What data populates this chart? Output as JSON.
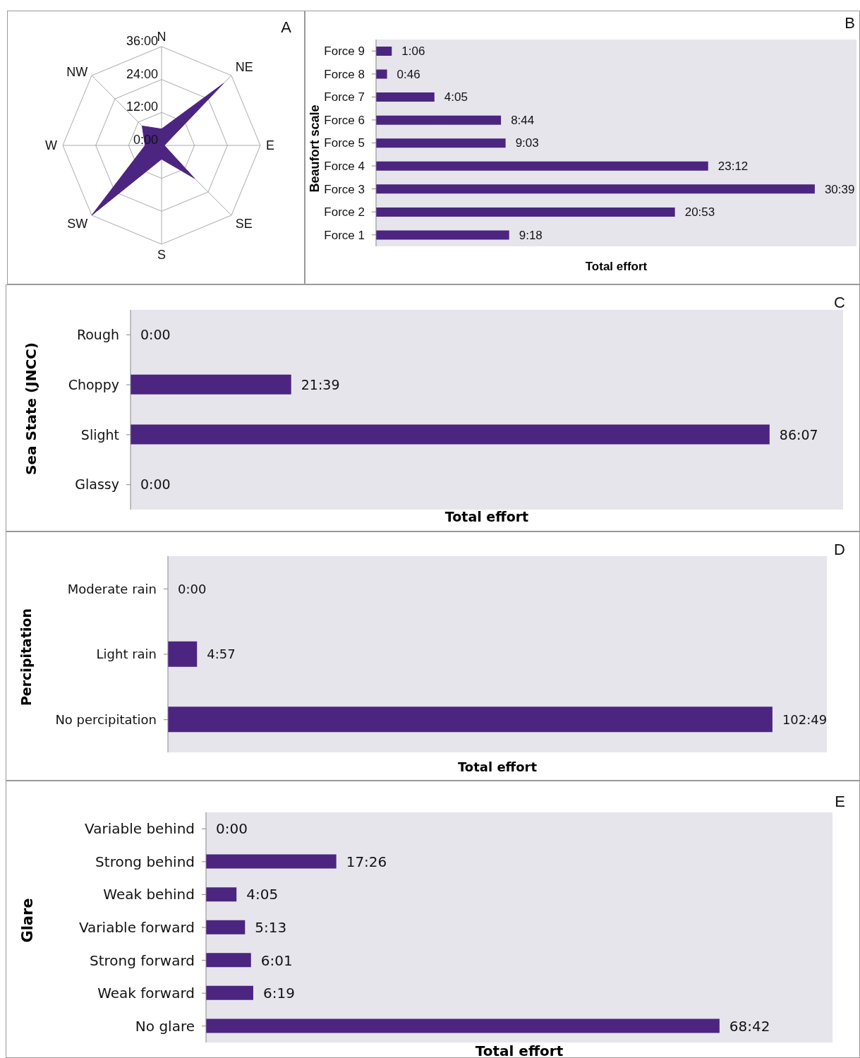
{
  "chart_data": [
    {
      "type": "radar",
      "annotations": [
        "A"
      ],
      "categories": [
        "N",
        "NE",
        "E",
        "SE",
        "S",
        "SW",
        "W",
        "NW"
      ],
      "series": [
        {
          "color": "#4b2580",
          "values": [
            6,
            32,
            1,
            17,
            5,
            36,
            6,
            10
          ]
        }
      ],
      "ylim": [
        0,
        36
      ],
      "yticks": [
        {
          "value": 0,
          "label": "0:00"
        },
        {
          "value": 12,
          "label": "12:00"
        },
        {
          "value": 24,
          "label": "24:00"
        },
        {
          "value": 36,
          "label": "36:00"
        }
      ]
    },
    {
      "type": "bar",
      "orientation": "horizontal",
      "annotations": [
        "B"
      ],
      "ylabel": "Beaufort scale",
      "xlabel": "Total effort",
      "color": "#4b2580",
      "categories": [
        "Force 9",
        "Force 8",
        "Force 7",
        "Force 6",
        "Force 5",
        "Force 4",
        "Force 3",
        "Force 2",
        "Force 1"
      ],
      "values": [
        1.1,
        0.77,
        4.08,
        8.73,
        9.05,
        23.2,
        30.65,
        20.88,
        9.3
      ],
      "value_labels": [
        "1:06",
        "0:46",
        "4:05",
        "8:44",
        "9:03",
        "23:12",
        "30:39",
        "20:53",
        "9:18"
      ]
    },
    {
      "type": "bar",
      "orientation": "horizontal",
      "annotations": [
        "C"
      ],
      "ylabel": "Sea State (JNCC)",
      "xlabel": "Total effort",
      "color": "#4b2580",
      "categories": [
        "Rough",
        "Choppy",
        "Slight",
        "Glassy"
      ],
      "values": [
        0,
        21.65,
        86.12,
        0
      ],
      "value_labels": [
        "0:00",
        "21:39",
        "86:07",
        "0:00"
      ]
    },
    {
      "type": "bar",
      "orientation": "horizontal",
      "annotations": [
        "D"
      ],
      "ylabel": "Percipitation",
      "xlabel": "Total effort",
      "color": "#4b2580",
      "categories": [
        "Moderate rain",
        "Light rain",
        "No percipitation"
      ],
      "values": [
        0,
        4.95,
        102.82
      ],
      "value_labels": [
        "0:00",
        "4:57",
        "102:49"
      ]
    },
    {
      "type": "bar",
      "orientation": "horizontal",
      "annotations": [
        "E"
      ],
      "ylabel": "Glare",
      "xlabel": "Total effort",
      "color": "#4b2580",
      "categories": [
        "Variable behind",
        "Strong behind",
        "Weak behind",
        "Variable forward",
        "Strong forward",
        "Weak forward",
        "No glare"
      ],
      "values": [
        0,
        17.43,
        4.08,
        5.22,
        6.02,
        6.32,
        68.7
      ],
      "value_labels": [
        "0:00",
        "17:26",
        "4:05",
        "5:13",
        "6:01",
        "6:19",
        "68:42"
      ]
    }
  ]
}
